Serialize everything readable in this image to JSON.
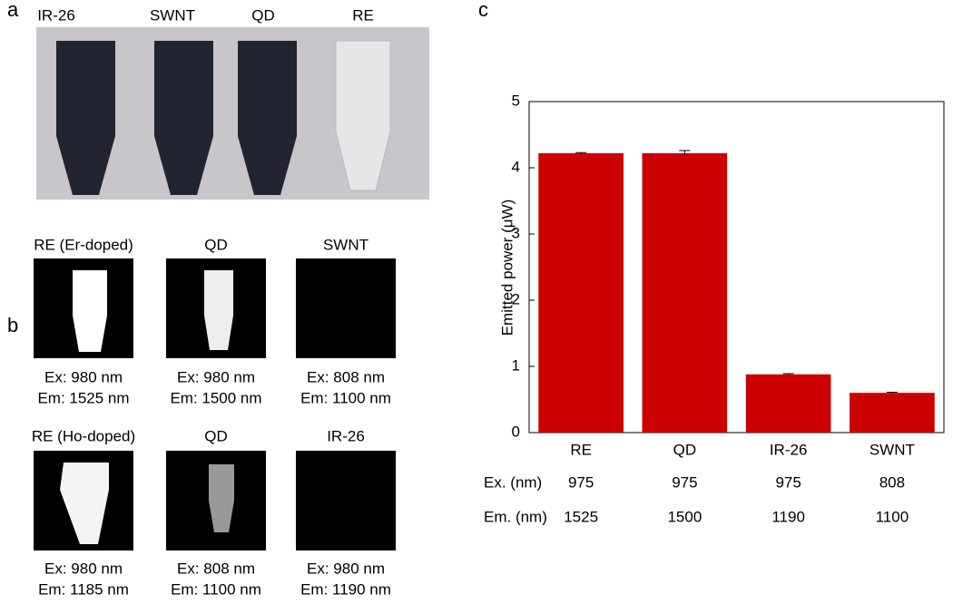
{
  "panel_a": {
    "label": "a",
    "tubes": [
      "IR-26",
      "SWNT",
      "QD",
      "RE"
    ]
  },
  "panel_b": {
    "label": "b",
    "images": [
      {
        "title": "RE (Er-doped)",
        "ex": "Ex: 980 nm",
        "em": "Em: 1525 nm"
      },
      {
        "title": "QD",
        "ex": "Ex: 980 nm",
        "em": "Em: 1500 nm"
      },
      {
        "title": "SWNT",
        "ex": "Ex: 808 nm",
        "em": "Em: 1100 nm"
      },
      {
        "title": "RE (Ho-doped)",
        "ex": "Ex: 980 nm",
        "em": "Em: 1185 nm"
      },
      {
        "title": "QD",
        "ex": "Ex: 808 nm",
        "em": "Em: 1100 nm"
      },
      {
        "title": "IR-26",
        "ex": "Ex: 980 nm",
        "em": "Em: 1190 nm"
      }
    ]
  },
  "chart_data": {
    "type": "bar",
    "label": "c",
    "ylabel": "Emitted power (μW)",
    "categories": [
      "RE",
      "QD",
      "IR-26",
      "SWNT"
    ],
    "values": [
      4.22,
      4.22,
      0.88,
      0.6
    ],
    "errors": [
      0.01,
      0.04,
      0.01,
      0.01
    ],
    "color": "#cc0000",
    "ylim": [
      0,
      5
    ],
    "yticks": [
      0,
      1,
      2,
      3,
      4,
      5
    ],
    "rows": [
      {
        "name": "Ex. (nm)",
        "values": [
          975,
          975,
          975,
          808
        ]
      },
      {
        "name": "Em. (nm)",
        "values": [
          1525,
          1500,
          1190,
          1100
        ]
      }
    ]
  }
}
